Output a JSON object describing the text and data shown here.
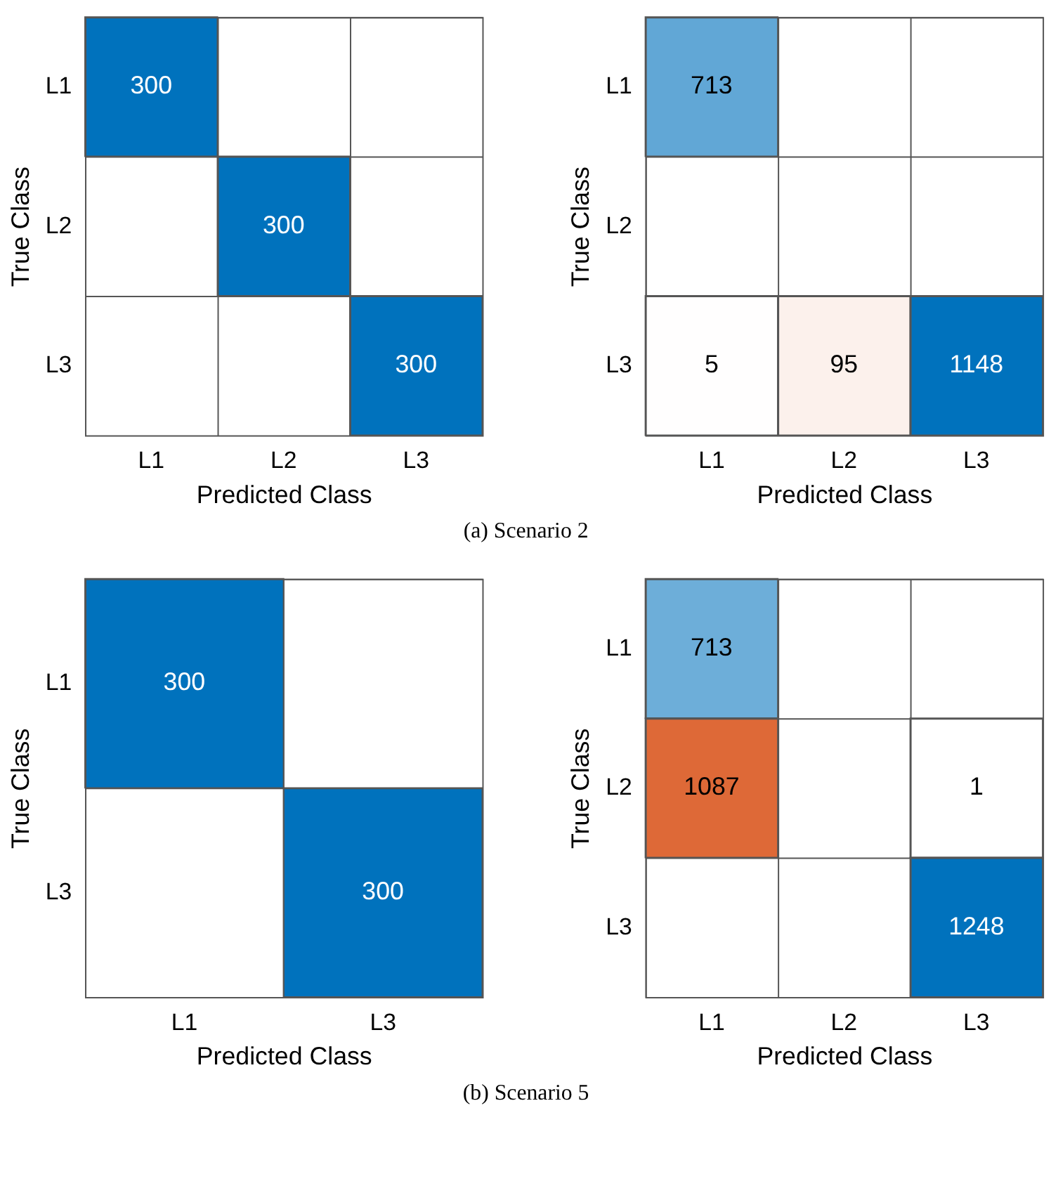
{
  "chart_data": [
    {
      "type": "heatmap",
      "xlabel": "Predicted Class",
      "ylabel": "True Class",
      "categories": [
        "L1",
        "L2",
        "L3"
      ],
      "y_categories": [
        "L1",
        "L2",
        "L3"
      ],
      "cells": [
        [
          300,
          null,
          null
        ],
        [
          null,
          300,
          null
        ],
        [
          null,
          null,
          300
        ]
      ],
      "data_labels": true,
      "colors": [
        "#0072bd",
        "#d95319"
      ],
      "annotations": [
        "(a) Scenario 2"
      ]
    },
    {
      "type": "heatmap",
      "xlabel": "Predicted Class",
      "ylabel": "True Class",
      "categories": [
        "L1",
        "L2",
        "L3"
      ],
      "y_categories": [
        "L1",
        "L2",
        "L3"
      ],
      "cells": [
        [
          713,
          null,
          null
        ],
        [
          null,
          null,
          null
        ],
        [
          5,
          95,
          1148
        ]
      ],
      "data_labels": true,
      "colors": [
        "#0072bd",
        "#d95319"
      ]
    },
    {
      "type": "heatmap",
      "xlabel": "Predicted Class",
      "ylabel": "True Class",
      "categories": [
        "L1",
        "L3"
      ],
      "y_categories": [
        "L1",
        "L3"
      ],
      "cells": [
        [
          300,
          null
        ],
        [
          null,
          300
        ]
      ],
      "data_labels": true,
      "colors": [
        "#0072bd",
        "#d95319"
      ],
      "annotations": [
        "(b) Scenario 5"
      ]
    },
    {
      "type": "heatmap",
      "xlabel": "Predicted Class",
      "ylabel": "True Class",
      "categories": [
        "L1",
        "L2",
        "L3"
      ],
      "y_categories": [
        "L1",
        "L2",
        "L3"
      ],
      "cells": [
        [
          713,
          null,
          null
        ],
        [
          1087,
          null,
          1
        ],
        [
          null,
          null,
          1248
        ]
      ],
      "data_labels": true,
      "colors": [
        "#0072bd",
        "#d95319"
      ]
    }
  ]
}
